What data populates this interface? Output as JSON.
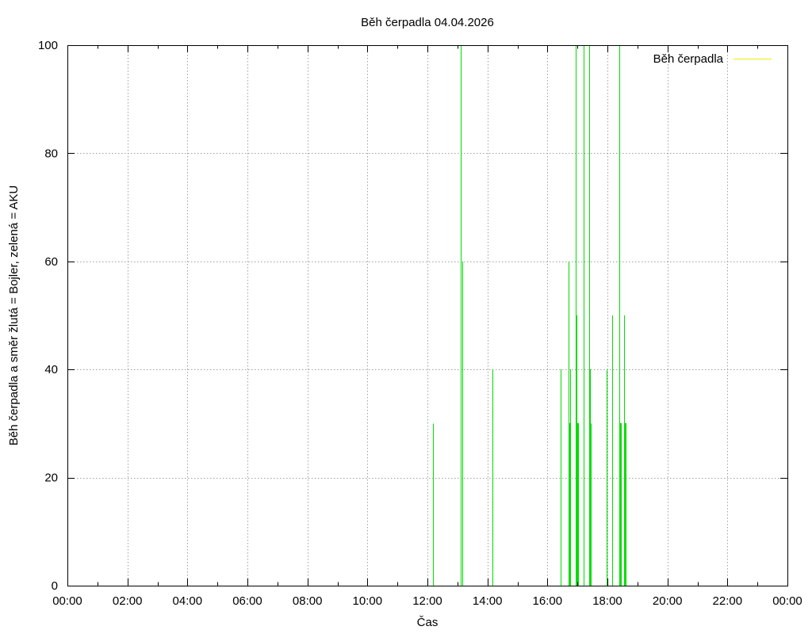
{
  "chart_data": {
    "type": "line",
    "title": "Běh čerpadla 04.04.2026",
    "xlabel": "Čas",
    "ylabel": "Běh čerpadla a směr žlutá = Bojler, zelená = AKU",
    "xlim": [
      "00:00",
      "24:00"
    ],
    "x_ticks": [
      "00:00",
      "02:00",
      "04:00",
      "06:00",
      "08:00",
      "10:00",
      "12:00",
      "14:00",
      "16:00",
      "18:00",
      "20:00",
      "22:00",
      "00:00"
    ],
    "ylim": [
      0,
      100
    ],
    "y_ticks": [
      0,
      20,
      40,
      60,
      80,
      100
    ],
    "grid": true,
    "legend_position": "top-right",
    "series": [
      {
        "name": "Běh čerpadla",
        "legend_color": "#eeee00",
        "color": "#00dd00",
        "pulses": [
          {
            "start": "12:11",
            "end": "12:11",
            "value": 30
          },
          {
            "start": "13:07",
            "end": "13:07",
            "value": 100
          },
          {
            "start": "13:09",
            "end": "13:09",
            "value": 60
          },
          {
            "start": "14:10",
            "end": "14:10",
            "value": 40
          },
          {
            "start": "16:26",
            "end": "16:26",
            "value": 40
          },
          {
            "start": "16:42",
            "end": "16:42",
            "value": 60
          },
          {
            "start": "16:43",
            "end": "16:45",
            "value": 30
          },
          {
            "start": "16:45",
            "end": "16:45",
            "value": 40
          },
          {
            "start": "16:56",
            "end": "16:56",
            "value": 100
          },
          {
            "start": "16:58",
            "end": "16:58",
            "value": 50
          },
          {
            "start": "16:59",
            "end": "17:01",
            "value": 30
          },
          {
            "start": "17:13",
            "end": "17:13",
            "value": 100
          },
          {
            "start": "17:24",
            "end": "17:24",
            "value": 100
          },
          {
            "start": "17:25",
            "end": "17:25",
            "value": 40
          },
          {
            "start": "17:26",
            "end": "17:27",
            "value": 30
          },
          {
            "start": "17:58",
            "end": "17:58",
            "value": 40
          },
          {
            "start": "18:10",
            "end": "18:10",
            "value": 50
          },
          {
            "start": "18:23",
            "end": "18:23",
            "value": 100
          },
          {
            "start": "18:24",
            "end": "18:27",
            "value": 30
          },
          {
            "start": "18:33",
            "end": "18:33",
            "value": 50
          },
          {
            "start": "18:34",
            "end": "18:36",
            "value": 30
          }
        ]
      }
    ]
  }
}
